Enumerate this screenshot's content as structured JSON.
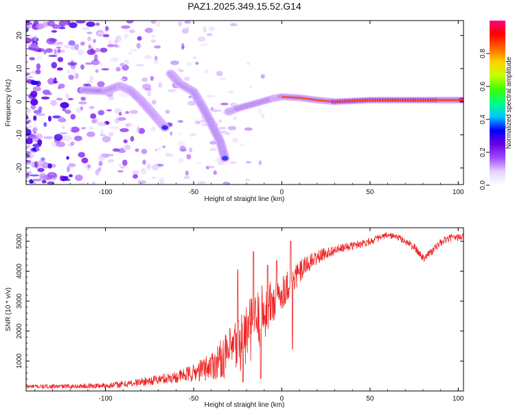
{
  "chart_data": [
    {
      "type": "heatmap",
      "title": "PAZ1.2025.349.15.52.G14",
      "xlabel": "Height of straight line (km)",
      "ylabel": "Frequency (Hz)",
      "xlim": [
        -145,
        103
      ],
      "ylim": [
        -25,
        24.5
      ],
      "xticks": [
        -100,
        -50,
        0,
        50,
        100
      ],
      "yticks": [
        -20,
        -10,
        0,
        10,
        20
      ],
      "colorbar": {
        "label": "Normalized spectral amplitude",
        "range": [
          0,
          1
        ],
        "ticks": [
          0.0,
          0.2,
          0.4,
          0.6,
          0.8
        ],
        "colors": [
          "#ffffff",
          "#e6d2ff",
          "#9e4bff",
          "#6a00e0",
          "#0000ff",
          "#00c8ff",
          "#00ff7f",
          "#3cff00",
          "#c8ff00",
          "#ffd000",
          "#ff6400",
          "#ff0000",
          "#ff0080"
        ]
      },
      "ridge": [
        {
          "x": -112,
          "f": 3.5
        },
        {
          "x": -100,
          "f": 3.2
        },
        {
          "x": -92,
          "f": 4.8
        },
        {
          "x": -86,
          "f": 3.5
        },
        {
          "x": -80,
          "f": 0.5
        },
        {
          "x": -75,
          "f": -2.5
        },
        {
          "x": -70,
          "f": -5.5
        },
        {
          "x": -66,
          "f": -8.0
        },
        {
          "x": -63,
          "f": 8.5
        },
        {
          "x": -58,
          "f": 5.5
        },
        {
          "x": -50,
          "f": 3.0
        },
        {
          "x": -45,
          "f": -1.5
        },
        {
          "x": -40,
          "f": -6.5
        },
        {
          "x": -35,
          "f": -12.0
        },
        {
          "x": -32,
          "f": -17.5
        },
        {
          "x": -30,
          "f": -3.0
        },
        {
          "x": -25,
          "f": -2.0
        },
        {
          "x": -15,
          "f": -0.5
        },
        {
          "x": -5,
          "f": 1.0
        },
        {
          "x": 0,
          "f": 1.5
        },
        {
          "x": 10,
          "f": 1.2
        },
        {
          "x": 20,
          "f": 0.5
        },
        {
          "x": 30,
          "f": 0.0
        },
        {
          "x": 50,
          "f": 0.5
        },
        {
          "x": 70,
          "f": 0.5
        },
        {
          "x": 90,
          "f": 0.5
        },
        {
          "x": 103,
          "f": 0.5
        }
      ]
    },
    {
      "type": "line",
      "title": "",
      "xlabel": "Height of straight line (km)",
      "ylabel": "SNR (10 * v/v)",
      "xlim": [
        -145,
        103
      ],
      "ylim": [
        0,
        5450
      ],
      "xticks": [
        -100,
        -50,
        0,
        50,
        100
      ],
      "yticks": [
        1000,
        2000,
        3000,
        4000,
        5000
      ],
      "series": [
        {
          "name": "SNR",
          "color": "#ee2222",
          "x": [
            -145,
            -130,
            -115,
            -100,
            -90,
            -80,
            -70,
            -60,
            -50,
            -40,
            -30,
            -25,
            -20,
            -15,
            -10,
            -5,
            0,
            5,
            10,
            15,
            20,
            25,
            30,
            40,
            50,
            55,
            60,
            65,
            70,
            75,
            80,
            85,
            90,
            95,
            103
          ],
          "mean": [
            150,
            150,
            160,
            180,
            220,
            300,
            380,
            470,
            600,
            850,
            1250,
            1550,
            1900,
            2250,
            2650,
            2950,
            3300,
            3650,
            3950,
            4250,
            4450,
            4600,
            4700,
            4850,
            5000,
            5100,
            5200,
            5150,
            5000,
            4800,
            4450,
            4650,
            4950,
            5100,
            5150
          ],
          "spread": [
            70,
            70,
            80,
            100,
            120,
            140,
            170,
            200,
            300,
            500,
            800,
            1000,
            1100,
            1050,
            1000,
            800,
            600,
            500,
            420,
            300,
            250,
            200,
            160,
            140,
            130,
            120,
            110,
            110,
            120,
            130,
            150,
            140,
            130,
            120,
            120
          ],
          "peaks": [
            {
              "x": -25,
              "y": 4050
            },
            {
              "x": -22,
              "y": 300
            },
            {
              "x": -16,
              "y": 4650
            },
            {
              "x": -12,
              "y": 420
            },
            {
              "x": -8,
              "y": 4200
            },
            {
              "x": -3,
              "y": 4350
            },
            {
              "x": 5,
              "y": 5000
            },
            {
              "x": 6,
              "y": 1400
            },
            {
              "x": 10,
              "y": 3900
            }
          ]
        }
      ]
    }
  ]
}
